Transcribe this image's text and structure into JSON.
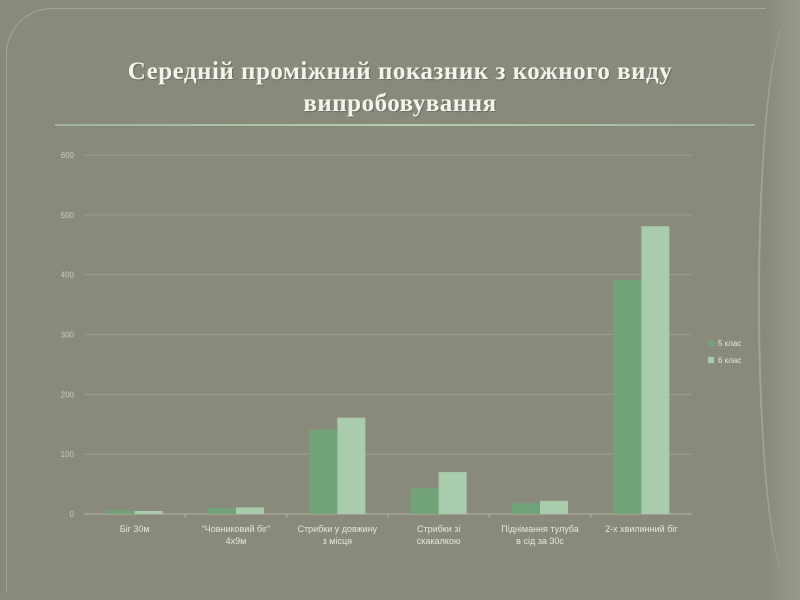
{
  "title": "Середній проміжний показник з кожного виду випробовування",
  "chart_data": {
    "type": "bar",
    "categories": [
      [
        "Біг 30м"
      ],
      [
        "\"Човниковий біг\"",
        "4х9м"
      ],
      [
        "Стрибки у довжину",
        "з місця"
      ],
      [
        "Стрибки зі",
        "скакалкою"
      ],
      [
        "Піднімання тулуба",
        "в сід за 30с"
      ],
      [
        "2-х хвилинний біг"
      ]
    ],
    "series": [
      {
        "name": "5 клас",
        "color": "#70a478",
        "values": [
          6,
          10,
          141,
          43,
          18,
          391
        ]
      },
      {
        "name": "6 клас",
        "color": "#a9ccad",
        "values": [
          5,
          11,
          161,
          70,
          22,
          481
        ]
      }
    ],
    "yticks": [
      0,
      100,
      200,
      300,
      400,
      500,
      600
    ],
    "ylim": [
      0,
      600
    ],
    "legend": "right",
    "grid": true
  }
}
